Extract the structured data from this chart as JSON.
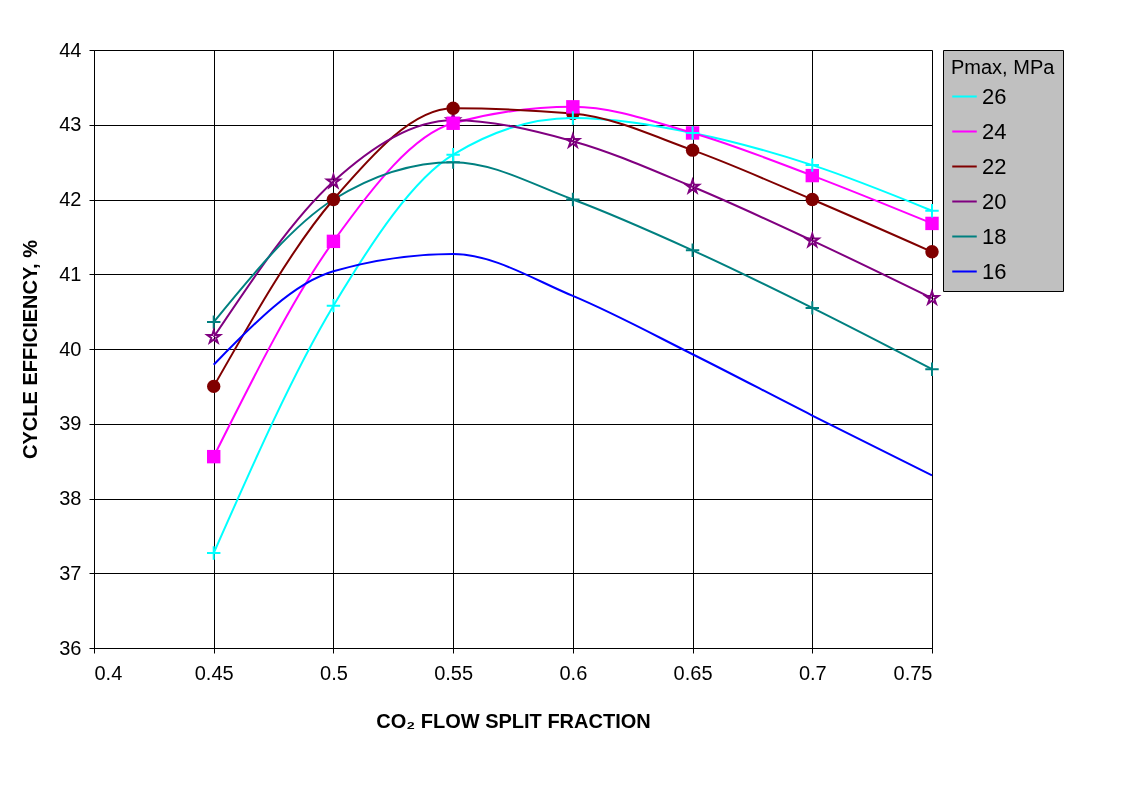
{
  "chart_data": {
    "type": "line",
    "xlabel": "CO₂ FLOW SPLIT FRACTION",
    "ylabel": "CYCLE EFFICIENCY, %",
    "legend_title": "Pmax, MPa",
    "x": [
      0.45,
      0.5,
      0.55,
      0.6,
      0.65,
      0.7,
      0.75
    ],
    "series": [
      {
        "name": "26",
        "color": "#00ffff",
        "marker": "cross",
        "values": [
          37.27,
          40.58,
          42.6,
          43.09,
          42.89,
          42.46,
          41.85
        ]
      },
      {
        "name": "24",
        "color": "#ff00ff",
        "marker": "square",
        "values": [
          38.56,
          41.44,
          43.02,
          43.24,
          42.89,
          42.32,
          41.68
        ]
      },
      {
        "name": "22",
        "color": "#800000",
        "marker": "circle",
        "values": [
          39.5,
          42.0,
          43.22,
          43.15,
          42.66,
          42.0,
          41.3
        ]
      },
      {
        "name": "20",
        "color": "#800080",
        "marker": "star",
        "values": [
          40.16,
          42.24,
          43.06,
          42.78,
          42.17,
          41.45,
          40.68
        ]
      },
      {
        "name": "18",
        "color": "#008080",
        "marker": "cross",
        "values": [
          40.36,
          42.0,
          42.5,
          42.0,
          41.32,
          40.55,
          39.73
        ]
      },
      {
        "name": "16",
        "color": "#0000ff",
        "marker": "none",
        "values": [
          39.79,
          41.04,
          41.27,
          40.71,
          39.93,
          39.11,
          38.31
        ]
      }
    ],
    "xlim": [
      0.4,
      0.75
    ],
    "xticks": [
      0.4,
      0.45,
      0.5,
      0.55,
      0.6,
      0.65,
      0.7,
      0.75
    ],
    "ylim": [
      36,
      44
    ],
    "yticks": [
      36,
      37,
      38,
      39,
      40,
      41,
      42,
      43,
      44
    ],
    "grid": true,
    "legend": "right",
    "line_style": "solid"
  }
}
